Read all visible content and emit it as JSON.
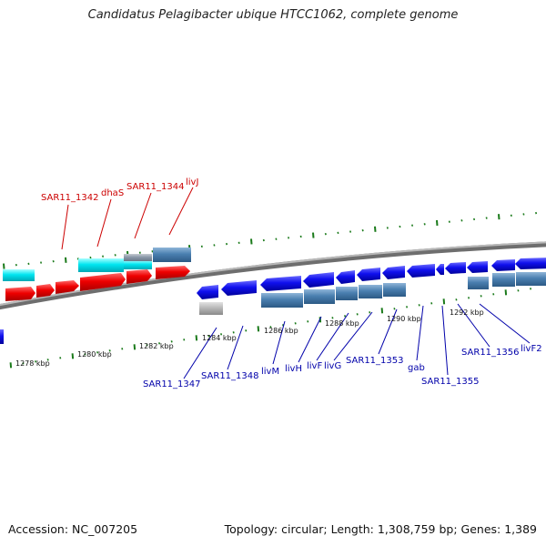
{
  "title": "Candidatus Pelagibacter ubique HTCC1062, complete genome",
  "footer": {
    "accession": "Accession: NC_007205",
    "topology": "Topology: circular; Length: 1,308,759 bp; Genes: 1,389"
  },
  "colors": {
    "label_top": "#cc0000",
    "label_bottom": "#0000aa",
    "backbone": "#888888",
    "tick": "#1a7a1a",
    "red_gene": "#ee0000",
    "cyan_gene": "#00e5f0",
    "blue_gene": "#1010ee",
    "steel_gene": "#4a7fb0",
    "gray_gene": "#b8b8b8"
  },
  "scale_labels": [
    "1278 kbp",
    "1280 kbp",
    "1282 kbp",
    "1284 kbp",
    "1286 kbp",
    "1288 kbp",
    "1290 kbp",
    "1292 kbp"
  ],
  "top_labels": [
    "SAR11_1342",
    "dhaS",
    "SAR11_1344",
    "livJ"
  ],
  "bottom_labels": [
    "SAR11_1347",
    "SAR11_1348",
    "livM",
    "livH",
    "livF",
    "livG",
    "SAR11_1353",
    "gab",
    "SAR11_1355",
    "SAR11_1356",
    "livF2"
  ]
}
